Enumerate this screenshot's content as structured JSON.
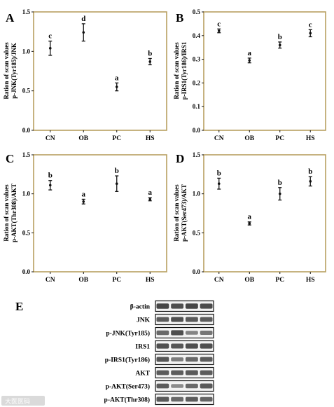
{
  "colors": {
    "frame": "#b8a060",
    "mark": "#111111",
    "band": "#333333",
    "box": "#111111"
  },
  "chart_data": [
    {
      "type": "scatter",
      "panel": "A",
      "categories": [
        "CN",
        "OB",
        "PC",
        "HS"
      ],
      "ylabel": [
        "Ration of scan values",
        "p-JNK(Tyr185)/JNK"
      ],
      "ylim": [
        0,
        1.5
      ],
      "yticks": [
        "0.0",
        "0.5",
        "1.0",
        "1.5"
      ],
      "grid": false,
      "values": [
        1.04,
        1.24,
        0.55,
        0.87
      ],
      "err": [
        0.09,
        0.11,
        0.05,
        0.04
      ],
      "labels": [
        "c",
        "d",
        "a",
        "b"
      ]
    },
    {
      "type": "scatter",
      "panel": "B",
      "categories": [
        "CN",
        "OB",
        "PC",
        "HS"
      ],
      "ylabel": [
        "Ration of scan values",
        "p-IRS1(Tyr186)/IRS1"
      ],
      "ylim": [
        0,
        0.5
      ],
      "yticks": [
        "0.0",
        "0.1",
        "0.2",
        "0.3",
        "0.4",
        "0.5"
      ],
      "grid": false,
      "values": [
        0.42,
        0.295,
        0.36,
        0.41
      ],
      "err": [
        0.008,
        0.01,
        0.013,
        0.015
      ],
      "labels": [
        "c",
        "a",
        "b",
        "c"
      ]
    },
    {
      "type": "scatter",
      "panel": "C",
      "categories": [
        "CN",
        "OB",
        "PC",
        "HS"
      ],
      "ylabel": [
        "Ration of scan values",
        "p-AKT(Thr308)/AKT"
      ],
      "ylim": [
        0,
        1.5
      ],
      "yticks": [
        "0.0",
        "0.5",
        "1.0",
        "1.5"
      ],
      "grid": false,
      "values": [
        1.11,
        0.9,
        1.13,
        0.93
      ],
      "err": [
        0.06,
        0.03,
        0.1,
        0.02
      ],
      "labels": [
        "b",
        "a",
        "b",
        "a"
      ]
    },
    {
      "type": "scatter",
      "panel": "D",
      "categories": [
        "CN",
        "OB",
        "PC",
        "HS"
      ],
      "ylabel": [
        "Ration of scan values",
        "p-AKT(Ser473)/AKT"
      ],
      "ylim": [
        0,
        1.5
      ],
      "yticks": [
        "0.0",
        "0.5",
        "1.0",
        "1.5"
      ],
      "grid": false,
      "values": [
        1.13,
        0.62,
        1.0,
        1.16
      ],
      "err": [
        0.07,
        0.02,
        0.08,
        0.06
      ],
      "labels": [
        "b",
        "a",
        "b",
        "b"
      ]
    }
  ],
  "blot": {
    "panel": "E",
    "rows": [
      {
        "label": "β-actin",
        "intensity": [
          0.85,
          0.8,
          0.85,
          0.82
        ]
      },
      {
        "label": "JNK",
        "intensity": [
          0.7,
          0.78,
          0.72,
          0.7
        ]
      },
      {
        "label": "p-JNK(Tyr185)",
        "intensity": [
          0.6,
          0.8,
          0.4,
          0.5
        ]
      },
      {
        "label": "IRS1",
        "intensity": [
          0.8,
          0.75,
          0.8,
          0.8
        ]
      },
      {
        "label": "p-IRS1(Tyr186)",
        "intensity": [
          0.75,
          0.45,
          0.6,
          0.7
        ]
      },
      {
        "label": "AKT",
        "intensity": [
          0.7,
          0.7,
          0.72,
          0.7
        ]
      },
      {
        "label": "p-AKT(Ser473)",
        "intensity": [
          0.7,
          0.35,
          0.6,
          0.72
        ]
      },
      {
        "label": "p-AKT(Thr308)",
        "intensity": [
          0.72,
          0.6,
          0.7,
          0.65
        ]
      }
    ]
  },
  "watermark": "大医医码"
}
